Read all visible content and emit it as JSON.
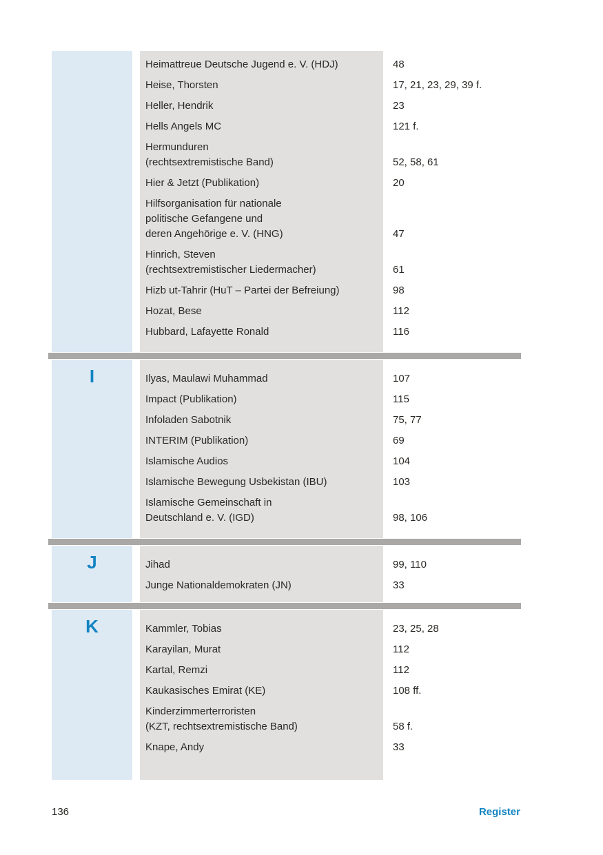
{
  "document": {
    "kind": "book-index-page",
    "language": "de"
  },
  "colors": {
    "accent_blue": "#1384c2",
    "band_blue": "#ddeaf4",
    "band_gray": "#e1e0de",
    "divider_gray": "#a9a8a7",
    "text": "#2b2925"
  },
  "sections": [
    {
      "letter": "",
      "entries": [
        {
          "lines": [
            "Heimattreue Deutsche Jugend e. V. (HDJ)"
          ],
          "pages": "48"
        },
        {
          "lines": [
            "Heise, Thorsten"
          ],
          "pages": "17, 21, 23, 29, 39 f."
        },
        {
          "lines": [
            "Heller, Hendrik"
          ],
          "pages": "23"
        },
        {
          "lines": [
            "Hells Angels MC"
          ],
          "pages": "121 f."
        },
        {
          "lines": [
            "Hermunduren",
            "(rechtsextremistische Band)"
          ],
          "pages": "52, 58, 61"
        },
        {
          "lines": [
            "Hier & Jetzt (Publikation)"
          ],
          "pages": "20"
        },
        {
          "lines": [
            "Hilfsorganisation für nationale",
            "politische Gefangene und",
            "deren Angehörige e. V. (HNG)"
          ],
          "pages": "47"
        },
        {
          "lines": [
            "Hinrich, Steven",
            "(rechtsextremistischer Liedermacher)"
          ],
          "pages": "61"
        },
        {
          "lines": [
            "Hizb ut-Tahrir (HuT – Partei der Befreiung)"
          ],
          "pages": "98"
        },
        {
          "lines": [
            "Hozat, Bese"
          ],
          "pages": "112"
        },
        {
          "lines": [
            "Hubbard, Lafayette Ronald"
          ],
          "pages": "116"
        }
      ]
    },
    {
      "letter": "I",
      "entries": [
        {
          "lines": [
            "Ilyas, Maulawi Muhammad"
          ],
          "pages": "107"
        },
        {
          "lines": [
            "Impact (Publikation)"
          ],
          "pages": "115"
        },
        {
          "lines": [
            "Infoladen Sabotnik"
          ],
          "pages": "75, 77"
        },
        {
          "lines": [
            "INTERIM (Publikation)"
          ],
          "pages": "69"
        },
        {
          "lines": [
            "Islamische Audios"
          ],
          "pages": "104"
        },
        {
          "lines": [
            "Islamische Bewegung Usbekistan (IBU)"
          ],
          "pages": "103"
        },
        {
          "lines": [
            "Islamische Gemeinschaft in",
            "Deutschland e. V. (IGD)"
          ],
          "pages": "98, 106"
        }
      ]
    },
    {
      "letter": "J",
      "entries": [
        {
          "lines": [
            "Jihad"
          ],
          "pages": "99, 110"
        },
        {
          "lines": [
            "Junge Nationaldemokraten (JN)"
          ],
          "pages": "33"
        }
      ]
    },
    {
      "letter": "K",
      "entries": [
        {
          "lines": [
            "Kammler, Tobias"
          ],
          "pages": "23, 25, 28"
        },
        {
          "lines": [
            "Karayilan, Murat"
          ],
          "pages": "112"
        },
        {
          "lines": [
            "Kartal, Remzi"
          ],
          "pages": "112"
        },
        {
          "lines": [
            "Kaukasisches Emirat (KE)"
          ],
          "pages": "108 ff."
        },
        {
          "lines": [
            "Kinderzimmerterroristen",
            "(KZT, rechtsextremistische Band)"
          ],
          "pages": "58 f."
        },
        {
          "lines": [
            "Knape, Andy"
          ],
          "pages": "33"
        }
      ]
    }
  ],
  "footer": {
    "page_number": "136",
    "register_label": "Register"
  }
}
